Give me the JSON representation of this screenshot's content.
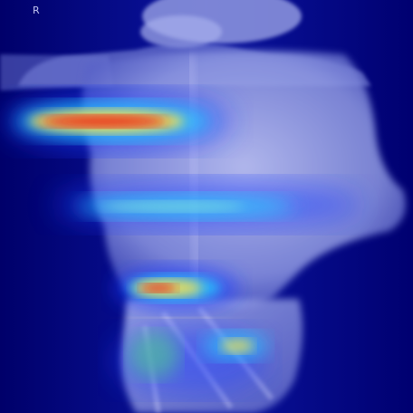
{
  "image": {
    "kind": "radiograph-with-heatmap-overlay",
    "orientation_marker": "R",
    "colors": {
      "background": "#00007e",
      "body_tint": "#aab2ee",
      "heat_low": "#1a3cff",
      "heat_mid": "#27d8ff",
      "heat_high": "#ffe14a",
      "heat_peak": "#e8221a"
    }
  }
}
